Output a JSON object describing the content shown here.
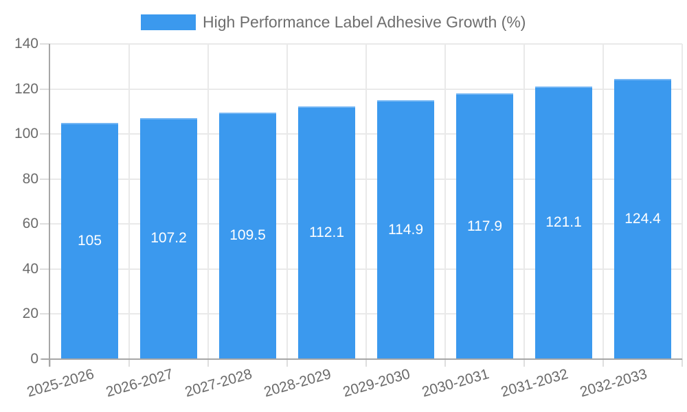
{
  "legend": {
    "label": "High Performance Label Adhesive Growth (%)"
  },
  "chart_data": {
    "type": "bar",
    "title": "High Performance Label Adhesive Growth (%)",
    "categories": [
      "2025-2026",
      "2026-2027",
      "2027-2028",
      "2028-2029",
      "2029-2030",
      "2030-2031",
      "2031-2032",
      "2032-2033"
    ],
    "values": [
      105,
      107.2,
      109.5,
      112.1,
      114.9,
      117.9,
      121.1,
      124.4
    ],
    "value_labels": [
      "105",
      "107.2",
      "109.5",
      "112.1",
      "114.9",
      "117.9",
      "121.1",
      "124.4"
    ],
    "xlabel": "",
    "ylabel": "",
    "ylim": [
      0,
      140
    ],
    "ytick_step": 20,
    "ytick_labels": [
      "0",
      "20",
      "40",
      "60",
      "80",
      "100",
      "120",
      "140"
    ],
    "grid": "on",
    "legend_position": "top-center",
    "colors": {
      "bar_fill": "#3b99ee",
      "bar_top_border": "#74b6f4",
      "value_label": "#ffffff",
      "grid_line": "#e9e9e9",
      "axis_line": "#a6a6a6",
      "tick_mark": "#dedede",
      "tick_text": "#6b6b6b",
      "title_text": "#6e6e6e"
    }
  }
}
